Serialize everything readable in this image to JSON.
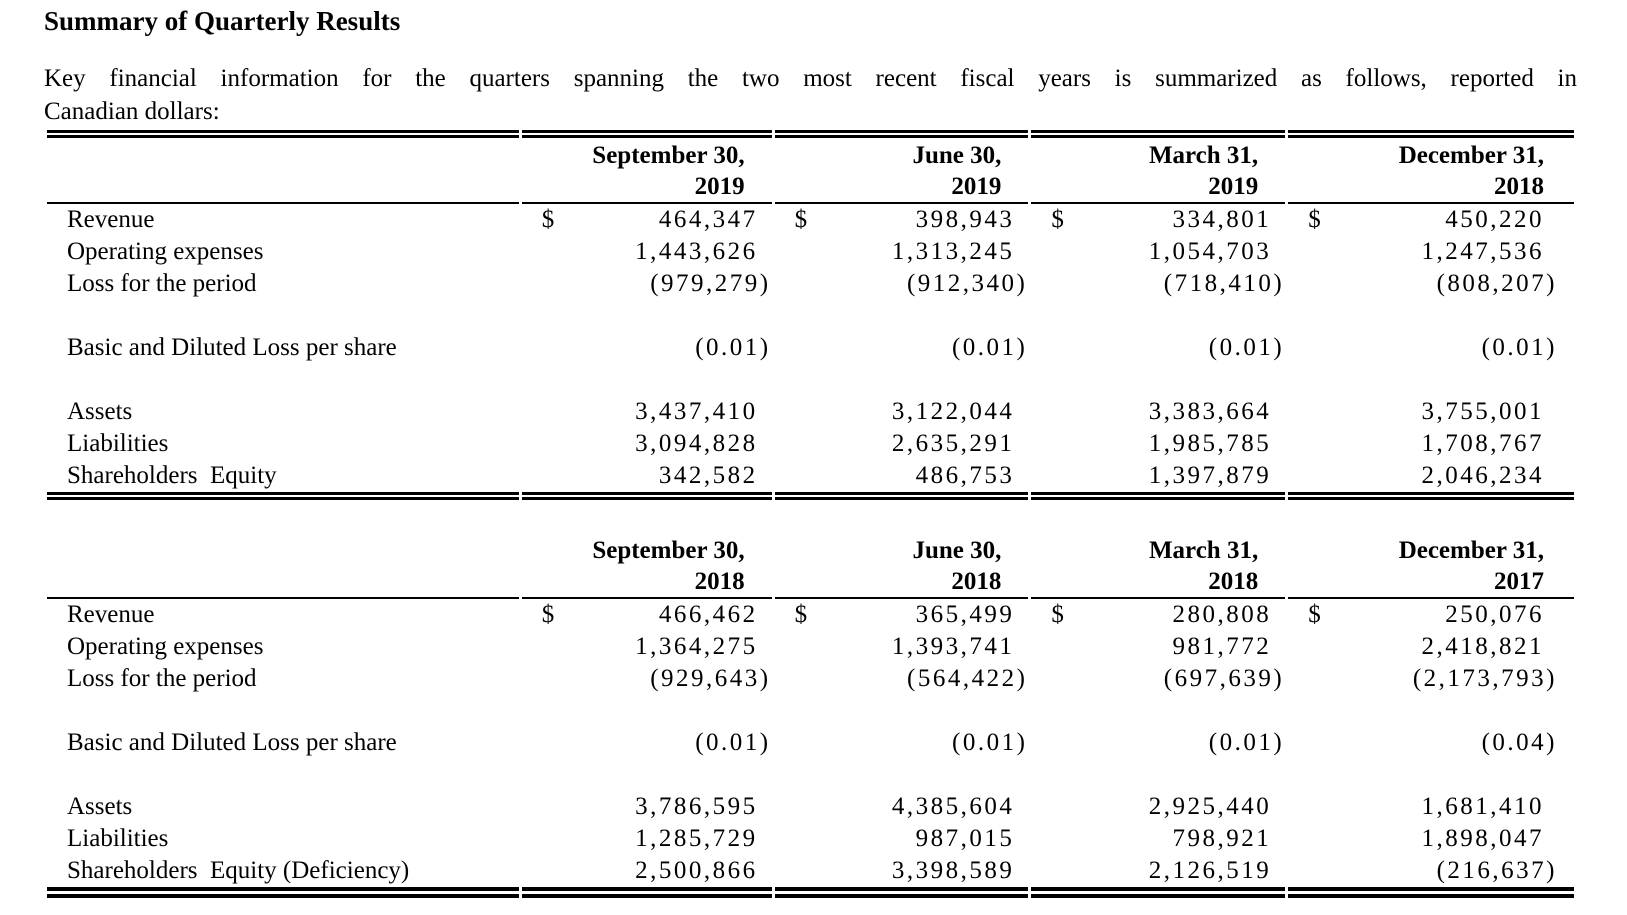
{
  "page": {
    "title": "Summary of Quarterly Results",
    "intro_line1": "Key financial information for the quarters spanning the two most recent fiscal years is summarized as follows, reported in",
    "intro_line2": "Canadian dollars:"
  },
  "currency_symbol": "$",
  "tables": [
    {
      "name": "fiscal-2019-quarters",
      "columns": [
        {
          "line1": "September 30,",
          "line2": "2019"
        },
        {
          "line1": "June 30,",
          "line2": "2019"
        },
        {
          "line1": "March 31,",
          "line2": "2019"
        },
        {
          "line1": "December 31,",
          "line2": "2018"
        }
      ],
      "rows": [
        {
          "label": "Revenue",
          "dollar": true,
          "values": [
            "464,347",
            "398,943",
            "334,801",
            "450,220"
          ]
        },
        {
          "label": "Operating expenses",
          "values": [
            "1,443,626",
            "1,313,245",
            "1,054,703",
            "1,247,536"
          ]
        },
        {
          "label": "Loss for the period",
          "values": [
            "(979,279)",
            "(912,340)",
            "(718,410)",
            "(808,207)"
          ]
        },
        {
          "spacer": true
        },
        {
          "label": "Basic and Diluted Loss per share",
          "values": [
            "(0.01)",
            "(0.01)",
            "(0.01)",
            "(0.01)"
          ]
        },
        {
          "spacer": true
        },
        {
          "label": "Assets",
          "values": [
            "3,437,410",
            "3,122,044",
            "3,383,664",
            "3,755,001"
          ]
        },
        {
          "label": "Liabilities",
          "values": [
            "3,094,828",
            "2,635,291",
            "1,985,785",
            "1,708,767"
          ]
        },
        {
          "label": "Shareholders  Equity",
          "values": [
            "342,582",
            "486,753",
            "1,397,879",
            "2,046,234"
          ]
        }
      ]
    },
    {
      "name": "fiscal-2018-quarters",
      "columns": [
        {
          "line1": "September 30,",
          "line2": "2018"
        },
        {
          "line1": "June 30,",
          "line2": "2018"
        },
        {
          "line1": "March 31,",
          "line2": "2018"
        },
        {
          "line1": "December 31,",
          "line2": "2017"
        }
      ],
      "rows": [
        {
          "label": "Revenue",
          "dollar": true,
          "values": [
            "466,462",
            "365,499",
            "280,808",
            "250,076"
          ]
        },
        {
          "label": "Operating expenses",
          "values": [
            "1,364,275",
            "1,393,741",
            "981,772",
            "2,418,821"
          ]
        },
        {
          "label": "Loss for the period",
          "values": [
            "(929,643)",
            "(564,422)",
            "(697,639)",
            "(2,173,793)"
          ]
        },
        {
          "spacer": true
        },
        {
          "label": "Basic and Diluted Loss per share",
          "values": [
            "(0.01)",
            "(0.01)",
            "(0.01)",
            "(0.04)"
          ]
        },
        {
          "spacer": true
        },
        {
          "label": "Assets",
          "values": [
            "3,786,595",
            "4,385,604",
            "2,925,440",
            "1,681,410"
          ]
        },
        {
          "label": "Liabilities",
          "values": [
            "1,285,729",
            "987,015",
            "798,921",
            "1,898,047"
          ]
        },
        {
          "label": "Shareholders  Equity (Deficiency)",
          "values": [
            "2,500,866",
            "3,398,589",
            "2,126,519",
            "(216,637)"
          ]
        }
      ]
    }
  ]
}
